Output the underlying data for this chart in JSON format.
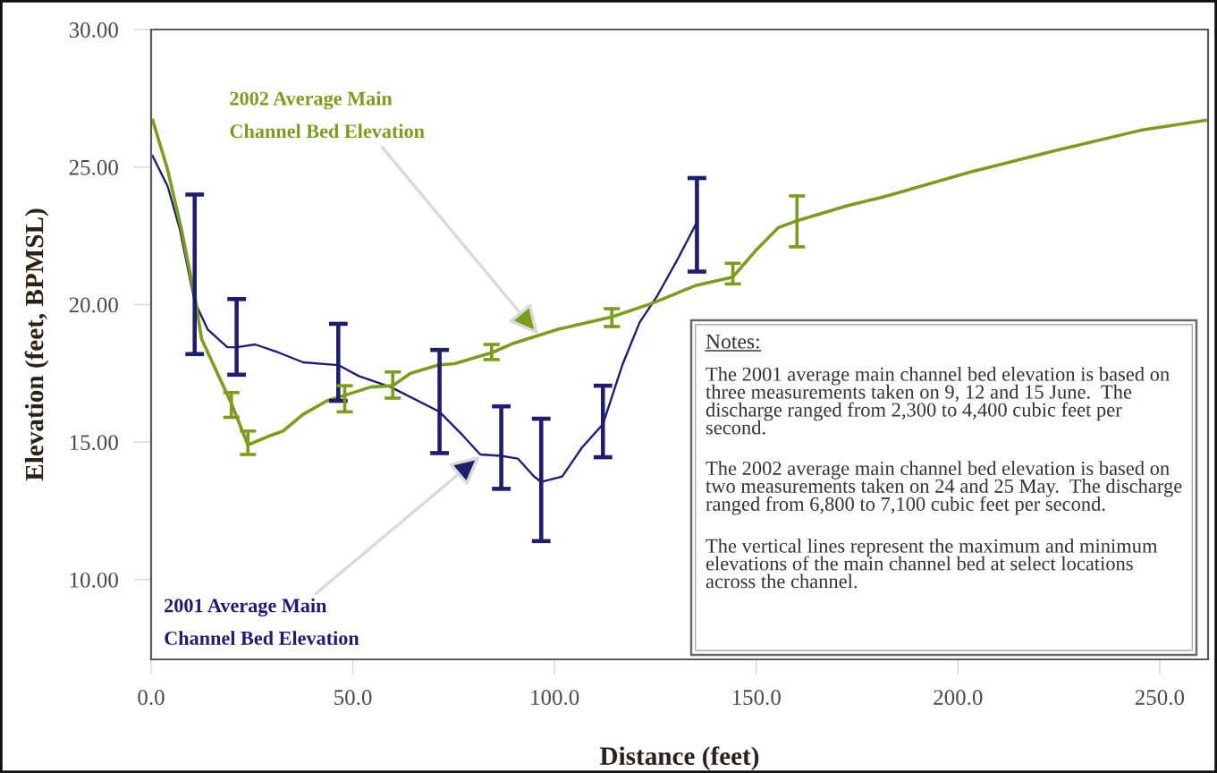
{
  "chart_data": {
    "type": "line",
    "xlabel": "Distance (feet)",
    "ylabel": "Elevation (feet, BPMSL)",
    "xlim": [
      0,
      262
    ],
    "ylim": [
      7.1,
      30
    ],
    "xticks": [
      {
        "value": 0,
        "label": "0.0"
      },
      {
        "value": 50,
        "label": "50.0"
      },
      {
        "value": 100,
        "label": "100.0"
      },
      {
        "value": 150,
        "label": "150.0"
      },
      {
        "value": 200,
        "label": "200.0"
      },
      {
        "value": 250,
        "label": "250.0"
      }
    ],
    "yticks": [
      {
        "value": 10,
        "label": "10.00"
      },
      {
        "value": 15,
        "label": "15.00"
      },
      {
        "value": 20,
        "label": "20.00"
      },
      {
        "value": 25,
        "label": "25.00"
      },
      {
        "value": 30,
        "label": "30.00"
      }
    ],
    "line_style": "solid",
    "series": [
      {
        "color": "#1f1d6e",
        "x": [
          0.4,
          4.1,
          7.1,
          10.8,
          14.0,
          18.9,
          21.2,
          25.8,
          31.7,
          37.7,
          46.4,
          51.5,
          59.4,
          71.5,
          77.2,
          81.6,
          86.8,
          90.9,
          94.9,
          96.7,
          101.9,
          106.8,
          112.0,
          116.8,
          121.1,
          125.4,
          130.7,
          135.3
        ],
        "values": [
          25.4,
          24.3,
          22.75,
          20.1,
          19.1,
          18.45,
          18.45,
          18.55,
          18.25,
          17.9,
          17.8,
          17.4,
          17.0,
          16.1,
          15.25,
          14.55,
          14.5,
          14.4,
          13.75,
          13.55,
          13.75,
          14.8,
          15.65,
          17.8,
          19.35,
          20.3,
          21.7,
          23.0
        ],
        "errors": [
          null,
          null,
          null,
          [
            18.2,
            24.0
          ],
          null,
          null,
          [
            17.45,
            20.2
          ],
          null,
          null,
          null,
          [
            16.5,
            19.3
          ],
          null,
          null,
          [
            14.6,
            18.35
          ],
          null,
          null,
          [
            13.3,
            16.3
          ],
          null,
          null,
          [
            11.4,
            15.85
          ],
          null,
          null,
          [
            14.45,
            17.05
          ],
          null,
          null,
          null,
          null,
          [
            21.2,
            24.6
          ]
        ]
      },
      {
        "color": "#7c9c1c",
        "x": [
          0.4,
          4.1,
          7.5,
          11.0,
          12.5,
          19.9,
          24.0,
          29.8,
          32.7,
          37.6,
          43.6,
          48.0,
          54.4,
          59.9,
          64.3,
          71.2,
          75.2,
          84.4,
          90.0,
          100.9,
          114.2,
          124.3,
          135.1,
          144.2,
          150.1,
          155.5,
          160.1,
          172.7,
          181.2,
          202.7,
          224.2,
          245.7,
          261.3
        ],
        "values": [
          26.7,
          24.9,
          22.75,
          20.15,
          18.75,
          16.4,
          14.9,
          15.25,
          15.4,
          16.0,
          16.5,
          16.7,
          17.0,
          17.05,
          17.5,
          17.8,
          17.85,
          18.25,
          18.6,
          19.1,
          19.55,
          20.05,
          20.7,
          21.0,
          22.0,
          22.8,
          23.05,
          23.6,
          23.9,
          24.8,
          25.6,
          26.35,
          26.7
        ],
        "errors": [
          null,
          null,
          null,
          null,
          null,
          [
            15.9,
            16.8
          ],
          [
            14.55,
            15.4
          ],
          null,
          null,
          null,
          null,
          [
            16.1,
            17.05
          ],
          null,
          [
            16.6,
            17.55
          ],
          null,
          null,
          null,
          [
            18.0,
            18.55
          ],
          null,
          null,
          [
            19.2,
            19.85
          ],
          null,
          null,
          [
            20.75,
            21.5
          ],
          null,
          null,
          [
            22.1,
            23.95
          ],
          null,
          null,
          null,
          null,
          null,
          null
        ]
      }
    ],
    "annotations": [
      {
        "text": "2001 Average Main\nChannel Bed Elevation",
        "x": 81.6,
        "y": 14.5
      },
      {
        "text": "2002 Average Main\nChannel Bed Elevation",
        "x": 96.0,
        "y": 18.9
      },
      "Notes:",
      "The 2001 average main channel bed elevation is based on\nthree measurements taken on 9, 12 and 15 June.  The\ndischarge ranged from 2,300 to 4,400 cubic feet per\nsecond.",
      "The 2002 average main channel bed elevation is based on\ntwo measurements taken on 24 and 25 May.  The discharge\nranged from 6,800 to 7,100 cubic feet per second.",
      "The vertical lines represent the maximum and minimum\nelevations of the main channel bed at select locations\nacross the channel."
    ]
  }
}
